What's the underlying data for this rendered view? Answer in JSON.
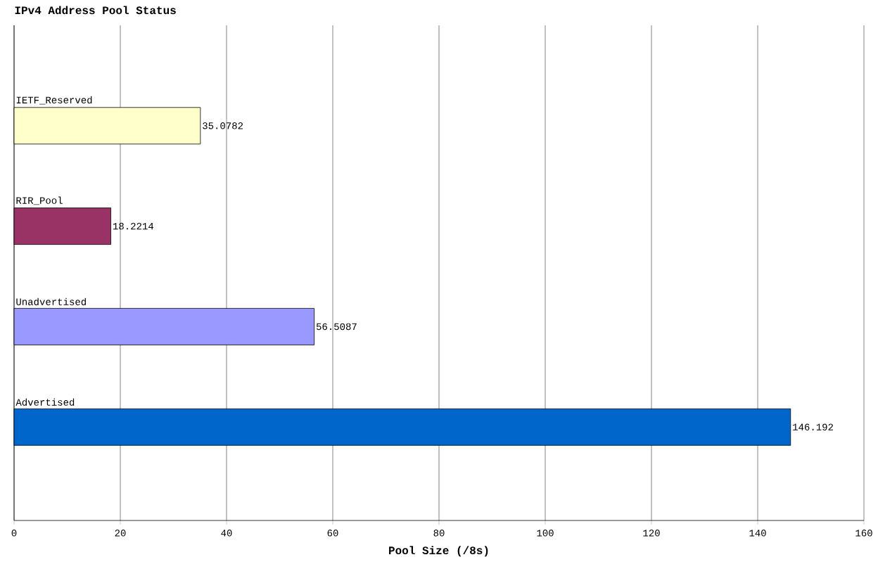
{
  "chart_data": {
    "type": "bar",
    "orientation": "horizontal",
    "title": "IPv4 Address Pool Status",
    "xlabel": "Pool Size (/8s)",
    "categories": [
      "IETF_Reserved",
      "RIR_Pool",
      "Unadvertised",
      "Advertised"
    ],
    "values": [
      35.0782,
      18.2214,
      56.5087,
      146.192
    ],
    "colors": [
      "#ffffcc",
      "#993366",
      "#9999ff",
      "#0066cc"
    ],
    "xlim": [
      0,
      160
    ],
    "xticks": [
      0,
      20,
      40,
      60,
      80,
      100,
      120,
      140,
      160
    ],
    "grid": "x",
    "data_labels": true
  }
}
